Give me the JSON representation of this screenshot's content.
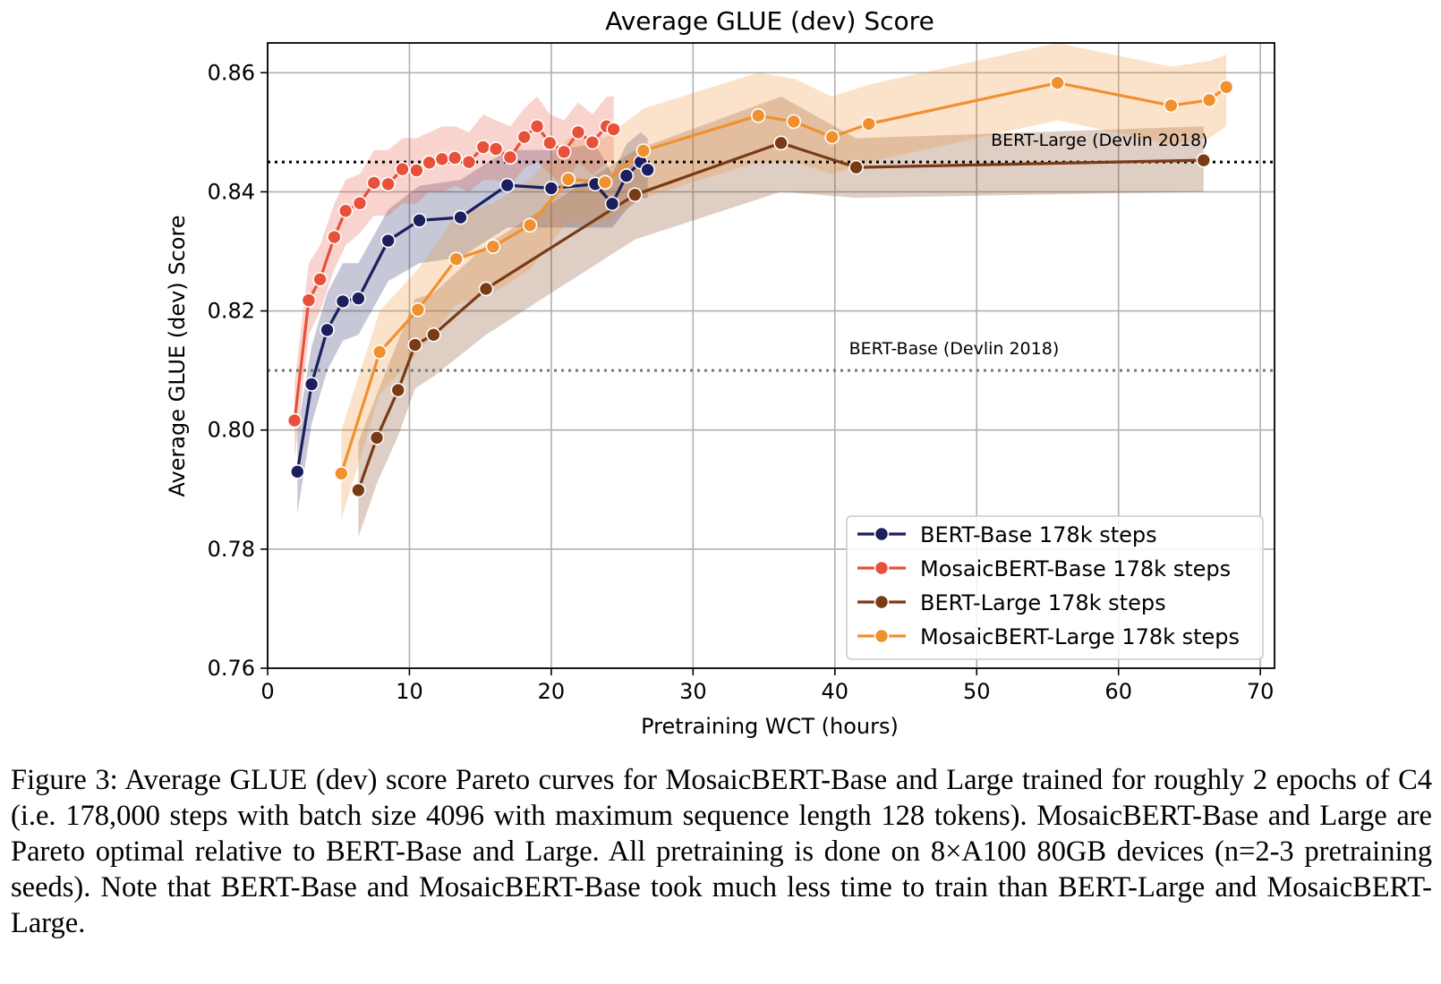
{
  "chart_data": {
    "type": "line",
    "title": "Average GLUE (dev) Score",
    "xlabel": "Pretraining WCT (hours)",
    "ylabel": "Average GLUE (dev) Score",
    "xlim": [
      0,
      71
    ],
    "ylim": [
      0.76,
      0.865
    ],
    "xticks": [
      0,
      10,
      20,
      30,
      40,
      50,
      60,
      70
    ],
    "xtick_labels": [
      "0",
      "10",
      "20",
      "30",
      "40",
      "50",
      "60",
      "70"
    ],
    "yticks": [
      0.76,
      0.78,
      0.8,
      0.82,
      0.84,
      0.86
    ],
    "ytick_labels": [
      "0.76",
      "0.78",
      "0.80",
      "0.82",
      "0.84",
      "0.86"
    ],
    "grid": true,
    "legend_position": "lower-right",
    "reference_lines": [
      {
        "label": "BERT-Large (Devlin 2018)",
        "y": 0.845,
        "color": "#000000",
        "label_x": 51
      },
      {
        "label": "BERT-Base (Devlin 2018)",
        "y": 0.81,
        "color": "#777777",
        "label_x": 41
      }
    ],
    "series": [
      {
        "name": "BERT-Base 178k steps",
        "color": "#1c1f5e",
        "x": [
          2.1,
          3.1,
          4.2,
          5.3,
          6.4,
          8.5,
          10.7,
          13.6,
          16.9,
          20.0,
          23.1,
          24.3,
          25.3,
          26.3,
          26.8
        ],
        "y": [
          0.793,
          0.8077,
          0.8168,
          0.8216,
          0.8221,
          0.8318,
          0.8352,
          0.8357,
          0.8411,
          0.8406,
          0.8413,
          0.838,
          0.8427,
          0.845,
          0.8437
        ],
        "lower": [
          0.786,
          0.801,
          0.81,
          0.815,
          0.816,
          0.825,
          0.828,
          0.829,
          0.834,
          0.834,
          0.834,
          0.834,
          0.837,
          0.839,
          0.839
        ],
        "upper": [
          0.8,
          0.814,
          0.823,
          0.828,
          0.828,
          0.837,
          0.841,
          0.842,
          0.847,
          0.847,
          0.848,
          0.843,
          0.848,
          0.85,
          0.849
        ]
      },
      {
        "name": "MosaicBERT-Base 178k steps",
        "color": "#e8503a",
        "x": [
          1.9,
          2.9,
          3.7,
          4.7,
          5.5,
          6.5,
          7.5,
          8.5,
          9.5,
          10.5,
          11.4,
          12.3,
          13.2,
          14.2,
          15.2,
          16.1,
          17.1,
          18.1,
          19.0,
          19.9,
          20.9,
          21.9,
          22.9,
          23.9,
          24.4
        ],
        "y": [
          0.8016,
          0.8218,
          0.8253,
          0.8324,
          0.8368,
          0.8381,
          0.8415,
          0.8413,
          0.8438,
          0.8436,
          0.8449,
          0.8455,
          0.8457,
          0.845,
          0.8475,
          0.8472,
          0.8458,
          0.8492,
          0.851,
          0.8482,
          0.8467,
          0.85,
          0.8483,
          0.851,
          0.8505
        ],
        "lower": [
          0.795,
          0.816,
          0.82,
          0.827,
          0.831,
          0.833,
          0.836,
          0.836,
          0.838,
          0.838,
          0.84,
          0.84,
          0.841,
          0.84,
          0.842,
          0.842,
          0.841,
          0.844,
          0.845,
          0.843,
          0.841,
          0.845,
          0.843,
          0.845,
          0.845
        ],
        "upper": [
          0.808,
          0.828,
          0.831,
          0.838,
          0.842,
          0.843,
          0.847,
          0.847,
          0.849,
          0.849,
          0.85,
          0.851,
          0.851,
          0.85,
          0.853,
          0.852,
          0.851,
          0.854,
          0.856,
          0.853,
          0.852,
          0.855,
          0.853,
          0.856,
          0.856
        ]
      },
      {
        "name": "BERT-Large 178k steps",
        "color": "#7a3a14",
        "x": [
          6.4,
          7.7,
          9.2,
          10.4,
          11.7,
          15.4,
          25.9,
          36.2,
          41.5,
          66.0
        ],
        "y": [
          0.7899,
          0.7987,
          0.8067,
          0.8143,
          0.816,
          0.8237,
          0.8395,
          0.8482,
          0.8441,
          0.8453
        ],
        "lower": [
          0.782,
          0.791,
          0.799,
          0.807,
          0.809,
          0.816,
          0.832,
          0.84,
          0.839,
          0.84
        ],
        "upper": [
          0.798,
          0.806,
          0.815,
          0.822,
          0.823,
          0.831,
          0.847,
          0.856,
          0.849,
          0.851
        ]
      },
      {
        "name": "MosaicBERT-Large 178k steps",
        "color": "#f0902e",
        "x": [
          5.2,
          7.9,
          10.6,
          13.3,
          15.9,
          18.5,
          21.2,
          23.8,
          26.5,
          34.6,
          37.1,
          39.8,
          42.4,
          55.7,
          63.7,
          66.4,
          67.6
        ],
        "y": [
          0.7927,
          0.8131,
          0.8202,
          0.8287,
          0.8308,
          0.8344,
          0.8421,
          0.8416,
          0.8469,
          0.8528,
          0.8518,
          0.8492,
          0.8514,
          0.8583,
          0.8545,
          0.8554,
          0.8576
        ],
        "lower": [
          0.785,
          0.806,
          0.813,
          0.821,
          0.823,
          0.827,
          0.835,
          0.835,
          0.839,
          0.845,
          0.845,
          0.843,
          0.845,
          0.852,
          0.848,
          0.849,
          0.851
        ],
        "upper": [
          0.8,
          0.82,
          0.827,
          0.836,
          0.838,
          0.842,
          0.849,
          0.849,
          0.854,
          0.86,
          0.859,
          0.856,
          0.858,
          0.865,
          0.861,
          0.862,
          0.863
        ]
      }
    ]
  },
  "caption": "Figure 3: Average GLUE (dev) score Pareto curves for MosaicBERT-Base and Large trained for roughly 2 epochs of C4 (i.e. 178,000 steps with batch size 4096 with maximum sequence length 128 tokens). MosaicBERT-Base and Large are Pareto optimal relative to BERT-Base and Large. All pretraining is done on 8×A100 80GB devices (n=2-3 pretraining seeds). Note that BERT-Base and MosaicBERT-Base took much less time to train than BERT-Large and MosaicBERT-Large."
}
